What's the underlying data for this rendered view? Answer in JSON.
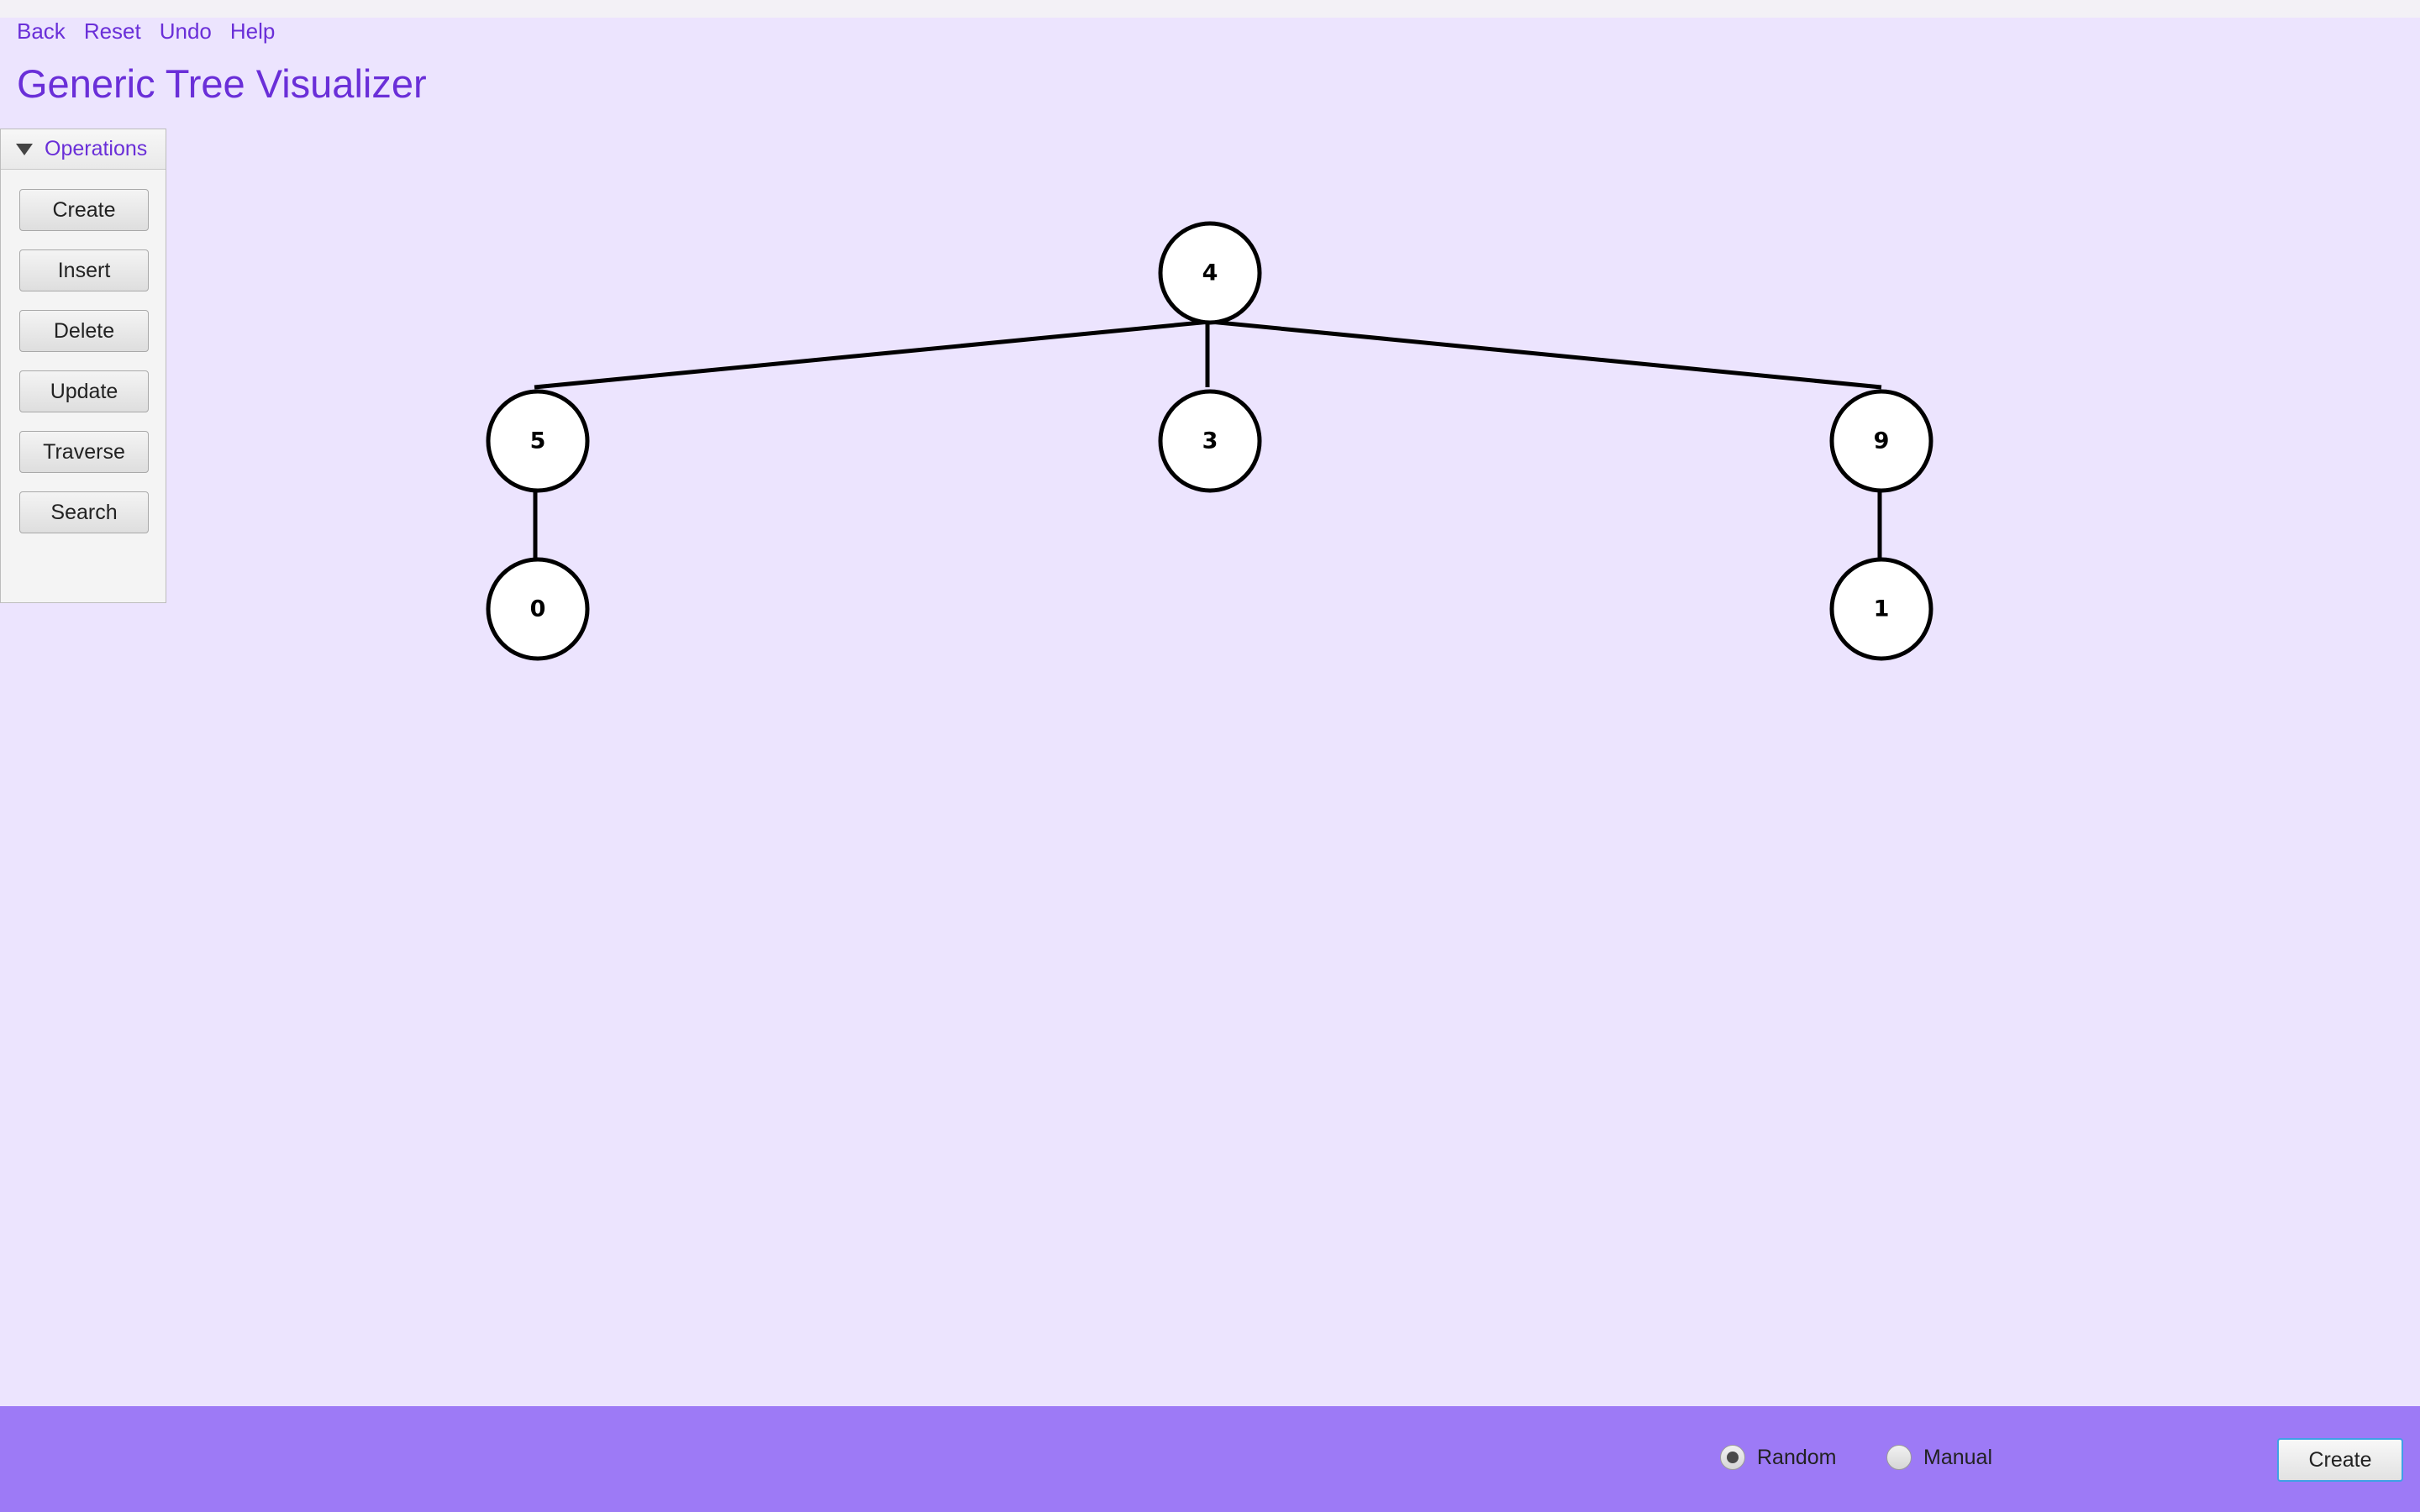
{
  "menu": {
    "back": "Back",
    "reset": "Reset",
    "undo": "Undo",
    "help": "Help"
  },
  "title": "Generic Tree Visualizer",
  "operations": {
    "header": "Operations",
    "buttons": [
      "Create",
      "Insert",
      "Delete",
      "Update",
      "Traverse",
      "Search"
    ]
  },
  "tree": {
    "root": "4",
    "children": [
      {
        "value": "5",
        "children": [
          "0"
        ]
      },
      {
        "value": "3",
        "children": []
      },
      {
        "value": "9",
        "children": [
          "1"
        ]
      }
    ]
  },
  "bottom": {
    "radio_random": "Random",
    "radio_manual": "Manual",
    "selected": "Random",
    "create": "Create"
  },
  "colors": {
    "background": "#ece4fe",
    "accent": "#6a2fd8",
    "bottom_bar": "#9d7af6"
  }
}
